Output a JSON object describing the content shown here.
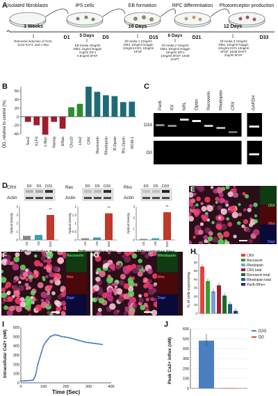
{
  "panel_labels": {
    "a": "A",
    "b": "B",
    "c": "C",
    "d": "D",
    "e": "E",
    "f": "F",
    "g": "G",
    "h": "H",
    "i": "I",
    "j": "J"
  },
  "timeline": {
    "stages": [
      "Isolated fibroblasts",
      "iPS cells",
      "EB formation",
      "RPC differentiation",
      "Photoreceptor production"
    ],
    "durations": [
      "3 Weeks",
      "5 Days",
      "10 Days",
      "6 Days",
      "12 Days"
    ],
    "days": [
      "D1",
      "D5",
      "D15",
      "D21",
      "D33"
    ],
    "notes": [
      "Retroviral induction of Oct4, Sox2 KLF4, and c-Myc",
      "EB media 10ng/ml Dkk1 1ng/ml Noggin 1ng/ml IGF1 0.5ng/ml bFGF",
      "Df media 1 10ng/ml Dkk1 10ng/ml Noggin 10ng/ml IGF1 10ng/ml bFGF",
      "Df media 2 10ng/ml Dkk1 10ng/ml Noggin 10ng/ml IGF1 10ng/ml bFGF 10nM DAPT",
      "Df media 3 10ng/ml Dkk1 10ng/ml Noggin 10ng/ml IGF1 10ng/ml bFGF 10nM DAPT 2ng/ml aFGF"
    ]
  },
  "chart_b": {
    "ylabel": "OD, relative to control (%)",
    "type": "bar",
    "categories": [
      "Sox2",
      "KLF4",
      "c-Myc",
      "Nanog",
      "ERas",
      "Chx10",
      "Lhx2",
      "CRX",
      "Recoverin",
      "Rhodopsin",
      "B-Opsin",
      "RG-Opsin",
      "ROM-1"
    ],
    "values": [
      -12,
      -20,
      -42,
      -12,
      -28,
      22,
      30,
      70,
      58,
      50,
      48,
      34,
      35
    ],
    "groups": [
      "pluripotency",
      "rpc",
      "photoreceptor"
    ],
    "colors": {
      "pluripotency": "#a01c2c",
      "rpc": "#2e8b2e",
      "photoreceptor": "#1e6b78"
    },
    "ylim": [
      -40,
      70
    ],
    "yticks": [
      "-40",
      "-20",
      "0",
      "20",
      "40",
      "60"
    ]
  },
  "gel_c": {
    "lanes": [
      "Pax6",
      "RX",
      "NRL",
      "Opsin",
      "Recoverin",
      "Rhodopsin",
      "CRX",
      "GAPDH"
    ],
    "rows": [
      "D33",
      "D0"
    ]
  },
  "panel_d": {
    "blots": [
      {
        "name": "CRX",
        "days": [
          "D0",
          "D5",
          "D33"
        ],
        "values": [
          0.5,
          0.6,
          3.0
        ],
        "ylim": [
          0,
          4
        ],
        "yticks": [
          "0",
          "1",
          "2",
          "3",
          "4"
        ]
      },
      {
        "name": "Rec",
        "days": [
          "D0",
          "D5",
          "D33"
        ],
        "values": [
          0.1,
          0.15,
          1.6
        ],
        "ylim": [
          0,
          2
        ],
        "yticks": [
          "0",
          "0.5",
          "1",
          "1.5",
          "2"
        ]
      },
      {
        "name": "Rho",
        "days": [
          "D0",
          "D5",
          "D33"
        ],
        "values": [
          0.1,
          0.15,
          2.5
        ],
        "ylim": [
          0,
          3
        ],
        "yticks": [
          "0",
          "1",
          "2",
          "3"
        ]
      }
    ],
    "actin": "Actin",
    "xcats": [
      "D1",
      "D5",
      "D33"
    ],
    "ylabel": "Optical Density",
    "xlabel": "Differentiation time",
    "sig": "**"
  },
  "micro": {
    "e": {
      "labels": [
        "CRX",
        "Rho",
        "Dapi"
      ]
    },
    "f": {
      "labels": [
        "Recoverin",
        "Rho",
        "Dapi"
      ]
    },
    "g": {
      "labels": [
        "Rhodopsin",
        "Rho",
        "Dapi"
      ]
    }
  },
  "chart_h": {
    "type": "bar",
    "ylabel": "% of cells expressing",
    "ylim": [
      0,
      70
    ],
    "yticks": [
      "0",
      "10",
      "20",
      "30",
      "40",
      "50",
      "60",
      "70"
    ],
    "series": [
      {
        "name": "CRX",
        "value": 55,
        "color": "#e8413c"
      },
      {
        "name": "Recoverin",
        "value": 38,
        "color": "#33a02c"
      },
      {
        "name": "Rhodopsin",
        "value": 26,
        "color": "#7a9fd6"
      },
      {
        "name": "CRX total",
        "value": 33,
        "color": "#a01c2c"
      },
      {
        "name": "Recoverin total",
        "value": 21,
        "color": "#1c6b2a"
      },
      {
        "name": "Rhodopsin total",
        "value": 11,
        "color": "#1e5f74"
      },
      {
        "name": "Pax6-/Rho+",
        "value": 3,
        "color": "#2a2a8a"
      }
    ]
  },
  "chart_i": {
    "type": "line",
    "xlabel": "Time (Sec)",
    "ylabel": "Intracellular Ca2+ (nM)",
    "xlim": [
      0,
      400
    ],
    "ylim": [
      0,
      600
    ],
    "xticks": [
      "0",
      "100",
      "200",
      "300",
      "400"
    ],
    "yticks": [
      "0",
      "100",
      "200",
      "300",
      "400",
      "500",
      "600"
    ],
    "x": [
      0,
      20,
      40,
      55,
      65,
      75,
      90,
      100,
      110,
      120,
      130,
      140,
      150,
      160,
      170,
      180,
      195,
      210,
      225,
      240,
      255,
      270,
      285,
      300,
      315,
      330,
      345,
      360
    ],
    "y": [
      20,
      22,
      25,
      30,
      80,
      200,
      320,
      400,
      440,
      470,
      500,
      510,
      520,
      515,
      510,
      500,
      495,
      490,
      480,
      470,
      460,
      450,
      440,
      435,
      430,
      425,
      420,
      415
    ]
  },
  "chart_j": {
    "type": "bar",
    "ylabel": "Peak Ca2+ influx (nM)",
    "ylim": [
      0,
      600
    ],
    "yticks": [
      "0",
      "100",
      "200",
      "300",
      "400",
      "500",
      "600"
    ],
    "series": [
      {
        "name": "D33",
        "value": 480,
        "color": "#4a7fc1"
      },
      {
        "name": "D0",
        "value": 3,
        "color": "#d94a3a"
      }
    ]
  }
}
